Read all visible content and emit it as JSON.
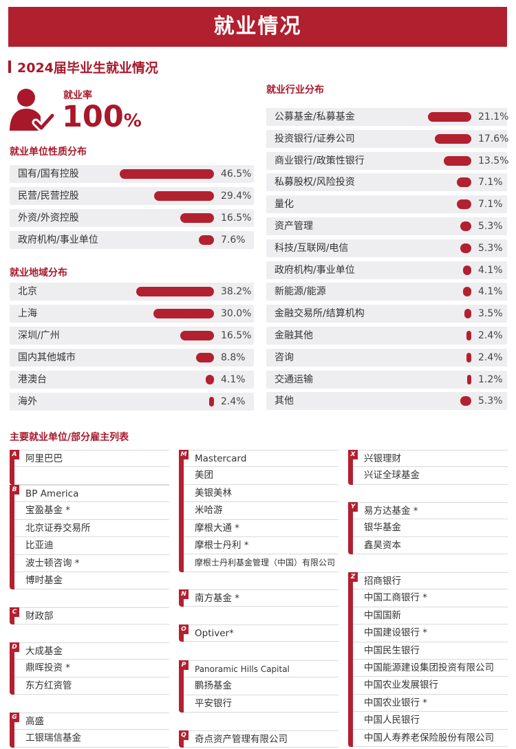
{
  "banner_title": "就业情况",
  "section_title": "2024届毕业生就业情况",
  "rate": {
    "label": "就业率",
    "value": "100",
    "unit": "%"
  },
  "nature": {
    "title": "就业单位性质分布",
    "rows": [
      {
        "label": "国有/国有控股",
        "value": "46.5%",
        "pct": 46.5
      },
      {
        "label": "民营/民营控股",
        "value": "29.4%",
        "pct": 29.4
      },
      {
        "label": "外资/外资控股",
        "value": "16.5%",
        "pct": 16.5
      },
      {
        "label": "政府机构/事业单位",
        "value": "7.6%",
        "pct": 7.6
      }
    ]
  },
  "region": {
    "title": "就业地域分布",
    "rows": [
      {
        "label": "北京",
        "value": "38.2%",
        "pct": 38.2
      },
      {
        "label": "上海",
        "value": "30.0%",
        "pct": 30.0
      },
      {
        "label": "深圳/广州",
        "value": "16.5%",
        "pct": 16.5
      },
      {
        "label": "国内其他城市",
        "value": "8.8%",
        "pct": 8.8
      },
      {
        "label": "港澳台",
        "value": "4.1%",
        "pct": 4.1
      },
      {
        "label": "海外",
        "value": "2.4%",
        "pct": 2.4
      }
    ]
  },
  "industry": {
    "title": "就业行业分布",
    "rows": [
      {
        "label": "公募基金/私募基金",
        "value": "21.1%",
        "pct": 21.1
      },
      {
        "label": "投资银行/证券公司",
        "value": "17.6%",
        "pct": 17.6
      },
      {
        "label": "商业银行/政策性银行",
        "value": "13.5%",
        "pct": 13.5
      },
      {
        "label": "私募股权/风险投资",
        "value": "7.1%",
        "pct": 7.1
      },
      {
        "label": "量化",
        "value": "7.1%",
        "pct": 7.1
      },
      {
        "label": "资产管理",
        "value": "5.3%",
        "pct": 5.3
      },
      {
        "label": "科技/互联网/电信",
        "value": "5.3%",
        "pct": 5.3
      },
      {
        "label": "政府机构/事业单位",
        "value": "4.1%",
        "pct": 4.1
      },
      {
        "label": "新能源/能源",
        "value": "4.1%",
        "pct": 4.1
      },
      {
        "label": "金融交易所/结算机构",
        "value": "3.5%",
        "pct": 3.5
      },
      {
        "label": "金融其他",
        "value": "2.4%",
        "pct": 2.4
      },
      {
        "label": "咨询",
        "value": "2.4%",
        "pct": 2.4
      },
      {
        "label": "交通运输",
        "value": "1.2%",
        "pct": 1.2
      },
      {
        "label": "其他",
        "value": "5.3%",
        "pct": 5.3
      }
    ]
  },
  "employers": {
    "title": "主要就业单位/部分雇主列表",
    "groups": [
      {
        "letter": "A",
        "items": [
          "阿里巴巴",
          ""
        ]
      },
      {
        "letter": "B",
        "items": [
          "BP America",
          "宝盈基金 *",
          "北京证券交易所",
          "比亚迪",
          "波士顿咨询 *",
          "博时基金"
        ]
      },
      {
        "letter": "C",
        "items": [
          "财政部"
        ]
      },
      {
        "letter": "D",
        "items": [
          "大成基金",
          "鼎晖投资 *",
          "东方红资管"
        ]
      },
      {
        "letter": "G",
        "items": [
          "高盛",
          "工银瑞信基金"
        ]
      },
      {
        "letter": "M",
        "items": [
          "Mastercard",
          "美团",
          "美银美林",
          "米哈游",
          "摩根大通 *",
          "摩根士丹利 *",
          "摩根士丹利基金管理（中国）有限公司"
        ]
      },
      {
        "letter": "N",
        "items": [
          "南方基金 *"
        ]
      },
      {
        "letter": "O",
        "items": [
          "Optiver*"
        ]
      },
      {
        "letter": "P",
        "items": [
          "Panoramic Hills Capital",
          "鹏扬基金",
          "平安银行"
        ]
      },
      {
        "letter": "Q",
        "items": [
          "奇点资产管理有限公司"
        ]
      },
      {
        "letter": "X",
        "items": [
          "兴银理财",
          "兴证全球基金"
        ]
      },
      {
        "letter": "Y",
        "items": [
          "易方达基金 *",
          "银华基金",
          "鑫昊资本"
        ]
      },
      {
        "letter": "Z",
        "items": [
          "招商银行",
          "中国工商银行 *",
          "中国国新",
          "中国建设银行 *",
          "中国民生银行",
          "中国能源建设集团投资有限公司",
          "中国农业发展银行",
          "中国农业银行 *",
          "中国人民银行",
          "中国人寿养老保险股份有限公司"
        ]
      }
    ]
  }
}
